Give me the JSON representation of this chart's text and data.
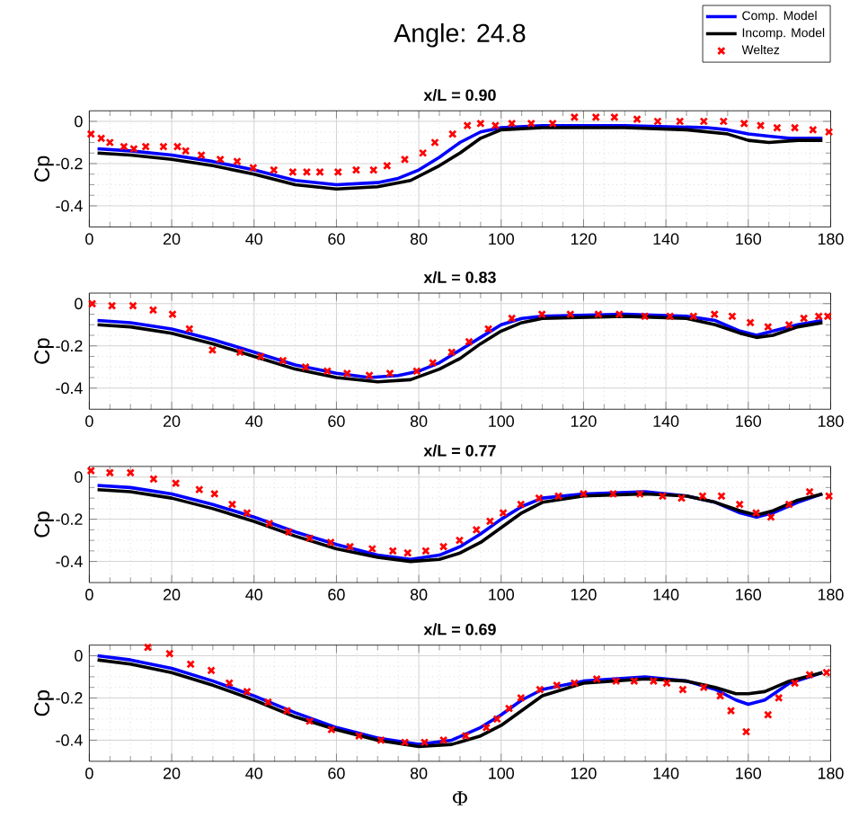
{
  "chart_data": [
    {
      "type": "line",
      "title": "Angle: 24.8",
      "subtitle": "x/L = 0.90",
      "ylabel": "Cp",
      "xlim": [
        0,
        180
      ],
      "xticks": [
        0,
        20,
        40,
        60,
        80,
        100,
        120,
        140,
        160,
        180
      ],
      "ylim": [
        -0.5,
        0.05
      ],
      "yticks": [
        -0.4,
        -0.2,
        0
      ],
      "grid": true,
      "legend": "top right",
      "series": [
        {
          "name": "Comp. Model",
          "color": "#0000ff",
          "x": [
            2,
            10,
            20,
            30,
            40,
            50,
            60,
            70,
            75,
            80,
            85,
            90,
            95,
            100,
            110,
            130,
            150,
            155,
            160,
            165,
            170,
            178
          ],
          "values": [
            -0.13,
            -0.14,
            -0.16,
            -0.19,
            -0.23,
            -0.28,
            -0.3,
            -0.29,
            -0.27,
            -0.23,
            -0.17,
            -0.1,
            -0.05,
            -0.03,
            -0.02,
            -0.02,
            -0.03,
            -0.04,
            -0.06,
            -0.07,
            -0.08,
            -0.08
          ]
        },
        {
          "name": "Incomp. Model",
          "color": "#000000",
          "x": [
            2,
            10,
            20,
            30,
            40,
            50,
            60,
            70,
            78,
            85,
            90,
            95,
            100,
            110,
            130,
            145,
            155,
            160,
            165,
            172,
            178
          ],
          "values": [
            -0.15,
            -0.16,
            -0.18,
            -0.21,
            -0.25,
            -0.3,
            -0.32,
            -0.31,
            -0.28,
            -0.21,
            -0.15,
            -0.08,
            -0.04,
            -0.03,
            -0.03,
            -0.04,
            -0.06,
            -0.09,
            -0.1,
            -0.09,
            -0.09
          ]
        },
        {
          "name": "Weltez",
          "type": "scatter",
          "marker": "cross",
          "color": "#ff0000",
          "x": [
            0.4,
            2.9,
            5,
            8.4,
            10.8,
            13.7,
            18,
            21.4,
            23.4,
            27.2,
            31.8,
            35.9,
            39.8,
            44.8,
            49.4,
            52.8,
            56,
            60.4,
            64.8,
            69,
            72.3,
            76.6,
            81,
            83.9,
            88.2,
            91.8,
            95,
            98.6,
            102.6,
            107.3,
            112.5,
            117.8,
            123,
            127.5,
            133,
            138,
            143.4,
            149.2,
            154,
            159,
            163,
            167,
            171.3,
            175.7,
            179.6
          ],
          "values": [
            -0.06,
            -0.08,
            -0.1,
            -0.12,
            -0.13,
            -0.12,
            -0.12,
            -0.12,
            -0.14,
            -0.16,
            -0.18,
            -0.19,
            -0.22,
            -0.23,
            -0.24,
            -0.24,
            -0.24,
            -0.24,
            -0.23,
            -0.23,
            -0.21,
            -0.18,
            -0.15,
            -0.1,
            -0.06,
            -0.02,
            -0.01,
            -0.02,
            -0.01,
            -0.01,
            -0.01,
            0.02,
            0.02,
            0.02,
            0.01,
            0,
            0,
            0,
            0,
            -0.01,
            -0.02,
            -0.03,
            -0.03,
            -0.04,
            -0.05
          ]
        }
      ]
    },
    {
      "type": "line",
      "title": "x/L = 0.83",
      "ylabel": "Cp",
      "xlim": [
        0,
        180
      ],
      "xticks": [
        0,
        20,
        40,
        60,
        80,
        100,
        120,
        140,
        160,
        180
      ],
      "ylim": [
        -0.5,
        0.05
      ],
      "yticks": [
        -0.4,
        -0.2,
        0
      ],
      "grid": true,
      "series": [
        {
          "color": "#0000ff",
          "x": [
            2,
            10,
            20,
            30,
            40,
            50,
            60,
            68,
            75,
            80,
            85,
            90,
            95,
            100,
            105,
            110,
            130,
            145,
            152,
            158,
            162,
            166,
            172,
            178
          ],
          "values": [
            -0.08,
            -0.09,
            -0.12,
            -0.17,
            -0.23,
            -0.29,
            -0.33,
            -0.35,
            -0.34,
            -0.32,
            -0.28,
            -0.22,
            -0.16,
            -0.1,
            -0.07,
            -0.06,
            -0.05,
            -0.06,
            -0.08,
            -0.13,
            -0.15,
            -0.13,
            -0.1,
            -0.08
          ]
        },
        {
          "color": "#000000",
          "x": [
            2,
            10,
            20,
            30,
            40,
            50,
            60,
            70,
            78,
            85,
            90,
            95,
            100,
            105,
            110,
            130,
            145,
            152,
            158,
            162,
            166,
            172,
            178
          ],
          "values": [
            -0.1,
            -0.11,
            -0.14,
            -0.19,
            -0.25,
            -0.31,
            -0.35,
            -0.37,
            -0.36,
            -0.31,
            -0.26,
            -0.19,
            -0.13,
            -0.09,
            -0.07,
            -0.06,
            -0.07,
            -0.1,
            -0.14,
            -0.16,
            -0.15,
            -0.11,
            -0.09
          ]
        },
        {
          "type": "scatter",
          "marker": "cross",
          "color": "#ff0000",
          "x": [
            0.7,
            5.5,
            10.6,
            15.5,
            20.2,
            24.3,
            29.9,
            36.6,
            41.6,
            47,
            52.5,
            57.8,
            62.6,
            68,
            73,
            79.5,
            83.4,
            88,
            92.2,
            96.9,
            102.6,
            109.9,
            116.8,
            123.6,
            128.7,
            134.9,
            141,
            146.7,
            151.8,
            156.1,
            160.5,
            164.8,
            169.9,
            173.5,
            177.1,
            179.3
          ],
          "values": [
            0,
            -0.01,
            -0.01,
            -0.03,
            -0.05,
            -0.12,
            -0.22,
            -0.23,
            -0.25,
            -0.27,
            -0.3,
            -0.32,
            -0.33,
            -0.34,
            -0.33,
            -0.32,
            -0.28,
            -0.23,
            -0.18,
            -0.12,
            -0.07,
            -0.05,
            -0.05,
            -0.05,
            -0.05,
            -0.06,
            -0.06,
            -0.06,
            -0.05,
            -0.06,
            -0.09,
            -0.11,
            -0.1,
            -0.07,
            -0.06,
            -0.06
          ]
        }
      ]
    },
    {
      "type": "line",
      "title": "x/L = 0.77",
      "ylabel": "Cp",
      "xlim": [
        0,
        180
      ],
      "xticks": [
        0,
        20,
        40,
        60,
        80,
        100,
        120,
        140,
        160,
        180
      ],
      "ylim": [
        -0.5,
        0.05
      ],
      "yticks": [
        -0.4,
        -0.2,
        0
      ],
      "grid": true,
      "series": [
        {
          "color": "#0000ff",
          "x": [
            2,
            10,
            20,
            30,
            40,
            50,
            60,
            70,
            78,
            85,
            90,
            95,
            100,
            105,
            110,
            120,
            135,
            145,
            152,
            158,
            162,
            166,
            172,
            178
          ],
          "values": [
            -0.04,
            -0.05,
            -0.08,
            -0.13,
            -0.19,
            -0.26,
            -0.32,
            -0.37,
            -0.39,
            -0.37,
            -0.33,
            -0.27,
            -0.2,
            -0.14,
            -0.1,
            -0.08,
            -0.07,
            -0.09,
            -0.12,
            -0.17,
            -0.19,
            -0.17,
            -0.12,
            -0.08
          ]
        },
        {
          "color": "#000000",
          "x": [
            2,
            10,
            20,
            30,
            40,
            50,
            60,
            70,
            78,
            85,
            90,
            95,
            100,
            105,
            110,
            120,
            135,
            145,
            152,
            158,
            162,
            166,
            172,
            178
          ],
          "values": [
            -0.06,
            -0.07,
            -0.1,
            -0.15,
            -0.21,
            -0.28,
            -0.34,
            -0.38,
            -0.4,
            -0.39,
            -0.36,
            -0.31,
            -0.24,
            -0.17,
            -0.12,
            -0.09,
            -0.08,
            -0.09,
            -0.12,
            -0.16,
            -0.18,
            -0.16,
            -0.11,
            -0.08
          ]
        },
        {
          "type": "scatter",
          "marker": "cross",
          "color": "#ff0000",
          "x": [
            0.4,
            5,
            10,
            15.6,
            21,
            26.7,
            30.4,
            34.7,
            38.3,
            43.7,
            48.4,
            53.5,
            58.6,
            63.3,
            68.7,
            73.7,
            77.3,
            81.7,
            86,
            89.9,
            94,
            97.3,
            100.5,
            104.8,
            109.2,
            113.9,
            120,
            127.2,
            133.7,
            139.2,
            143.8,
            148.9,
            153.5,
            157.9,
            161.9,
            165.5,
            169.9,
            174.9,
            179.6
          ],
          "values": [
            0.03,
            0.02,
            0.02,
            -0.01,
            -0.03,
            -0.06,
            -0.08,
            -0.13,
            -0.17,
            -0.22,
            -0.26,
            -0.29,
            -0.31,
            -0.33,
            -0.34,
            -0.35,
            -0.36,
            -0.35,
            -0.33,
            -0.3,
            -0.25,
            -0.21,
            -0.17,
            -0.13,
            -0.1,
            -0.09,
            -0.08,
            -0.08,
            -0.08,
            -0.09,
            -0.1,
            -0.09,
            -0.09,
            -0.13,
            -0.17,
            -0.19,
            -0.13,
            -0.07,
            -0.09
          ]
        }
      ]
    },
    {
      "type": "line",
      "title": "x/L = 0.69",
      "xlabel": "Φ",
      "ylabel": "Cp",
      "xlim": [
        0,
        180
      ],
      "xticks": [
        0,
        20,
        40,
        60,
        80,
        100,
        120,
        140,
        160,
        180
      ],
      "ylim": [
        -0.5,
        0.05
      ],
      "yticks": [
        -0.4,
        -0.2,
        0
      ],
      "grid": true,
      "series": [
        {
          "color": "#0000ff",
          "x": [
            2,
            10,
            20,
            30,
            40,
            50,
            60,
            70,
            80,
            88,
            95,
            100,
            105,
            110,
            120,
            135,
            145,
            152,
            157,
            160,
            164,
            170,
            178
          ],
          "values": [
            0,
            -0.02,
            -0.06,
            -0.12,
            -0.19,
            -0.27,
            -0.34,
            -0.39,
            -0.42,
            -0.4,
            -0.34,
            -0.28,
            -0.21,
            -0.16,
            -0.12,
            -0.1,
            -0.12,
            -0.16,
            -0.21,
            -0.23,
            -0.21,
            -0.13,
            -0.08
          ]
        },
        {
          "color": "#000000",
          "x": [
            2,
            10,
            20,
            30,
            40,
            50,
            60,
            70,
            80,
            88,
            95,
            100,
            105,
            110,
            120,
            135,
            145,
            152,
            157,
            160,
            164,
            170,
            178
          ],
          "values": [
            -0.02,
            -0.04,
            -0.08,
            -0.14,
            -0.21,
            -0.29,
            -0.35,
            -0.4,
            -0.43,
            -0.42,
            -0.38,
            -0.33,
            -0.26,
            -0.19,
            -0.13,
            -0.11,
            -0.12,
            -0.15,
            -0.18,
            -0.18,
            -0.17,
            -0.12,
            -0.08
          ]
        },
        {
          "type": "scatter",
          "marker": "cross",
          "color": "#ff0000",
          "x": [
            14.2,
            19.5,
            24.6,
            29.6,
            34,
            38.3,
            43.4,
            48,
            53.5,
            58.8,
            65.5,
            70.8,
            76.6,
            81.4,
            86,
            91.4,
            96.4,
            99,
            101.9,
            104.8,
            109.4,
            113.5,
            117.8,
            123.2,
            127.9,
            132.3,
            137,
            140.2,
            144.1,
            149.2,
            153.2,
            155.8,
            159.5,
            164.8,
            167.4,
            171.3,
            174.9,
            179
          ],
          "values": [
            0.04,
            0.01,
            -0.04,
            -0.07,
            -0.13,
            -0.17,
            -0.22,
            -0.26,
            -0.31,
            -0.35,
            -0.38,
            -0.4,
            -0.41,
            -0.41,
            -0.4,
            -0.38,
            -0.34,
            -0.3,
            -0.25,
            -0.2,
            -0.16,
            -0.14,
            -0.13,
            -0.11,
            -0.12,
            -0.12,
            -0.12,
            -0.13,
            -0.16,
            -0.15,
            -0.19,
            -0.26,
            -0.36,
            -0.28,
            -0.2,
            -0.13,
            -0.09,
            -0.08
          ]
        }
      ]
    }
  ]
}
